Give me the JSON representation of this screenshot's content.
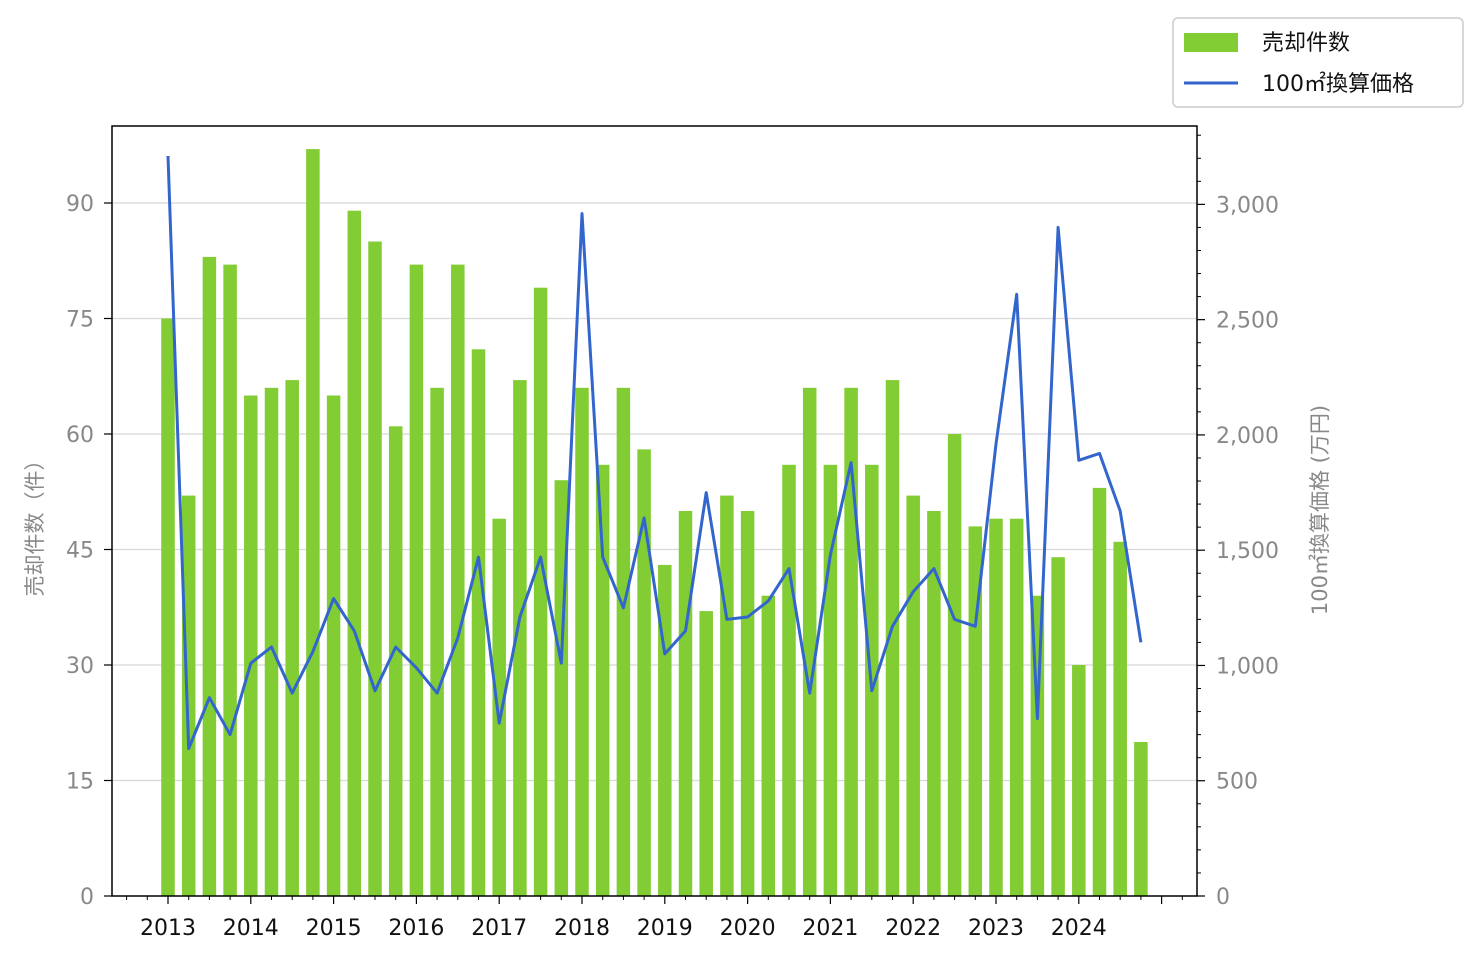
{
  "chart_data": {
    "type": "bar",
    "x_tick_labels": [
      "2013",
      "2014",
      "2015",
      "2016",
      "2017",
      "2018",
      "2019",
      "2020",
      "2021",
      "2022",
      "2023",
      "2024"
    ],
    "ylabel_left": "売却件数（件）",
    "ylabel_right": "100㎡換算価格 (万円)",
    "ylim_left": [
      0,
      100
    ],
    "ylim_right": [
      0,
      3340
    ],
    "yticks_left": [
      0,
      15,
      30,
      45,
      60,
      75,
      90
    ],
    "yticks_right": [
      0,
      500,
      1000,
      1500,
      2000,
      2500,
      3000
    ],
    "yticks_right_labels": [
      "0",
      "500",
      "1,000",
      "1,500",
      "2,000",
      "2,500",
      "3,000"
    ],
    "grid": "horizontal",
    "legend_position": "top-right",
    "series": [
      {
        "name": "売却件数",
        "type": "bar",
        "color": "#82cc34",
        "values": [
          75,
          52,
          83,
          82,
          65,
          66,
          67,
          97,
          65,
          89,
          85,
          61,
          82,
          66,
          82,
          71,
          49,
          67,
          79,
          54,
          66,
          56,
          66,
          58,
          43,
          50,
          37,
          52,
          50,
          39,
          56,
          66,
          56,
          66,
          56,
          67,
          52,
          50,
          60,
          48,
          49,
          49,
          39,
          44,
          30,
          53,
          46,
          20
        ]
      },
      {
        "name": "100㎡換算価格",
        "type": "line",
        "color": "#3366cc",
        "values": [
          3210,
          640,
          860,
          700,
          1010,
          1080,
          880,
          1060,
          1290,
          1150,
          890,
          1080,
          990,
          880,
          1120,
          1470,
          750,
          1210,
          1470,
          1010,
          2960,
          1470,
          1250,
          1640,
          1050,
          1150,
          1750,
          1200,
          1210,
          1280,
          1420,
          880,
          1480,
          1880,
          890,
          1170,
          1320,
          1420,
          1200,
          1170,
          1960,
          2610,
          770,
          2900,
          1890,
          1920,
          1670,
          1100
        ]
      }
    ]
  }
}
